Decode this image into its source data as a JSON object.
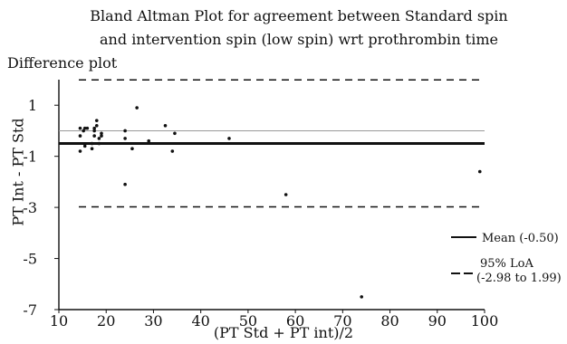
{
  "chart_data": {
    "type": "scatter",
    "title_line1": "Bland Altman Plot for agreement between Standard spin",
    "title_line2": "and intervention spin (low spin) wrt prothrombin time",
    "subtitle": "Difference plot",
    "xlabel": "(PT Std + PT int)/2",
    "ylabel": "PT Int - PT Std",
    "xlim": [
      10,
      100
    ],
    "ylim": [
      -7,
      2
    ],
    "xticks": [
      10,
      20,
      30,
      40,
      50,
      60,
      70,
      80,
      90,
      100
    ],
    "yticks": [
      1,
      -1,
      -3,
      -5,
      -7
    ],
    "grid": false,
    "zero_line": 0,
    "mean": -0.5,
    "loa_upper": 1.99,
    "loa_lower": -2.98,
    "points": [
      {
        "x": 14.5,
        "y": -0.2
      },
      {
        "x": 14.5,
        "y": 0.1
      },
      {
        "x": 14.5,
        "y": -0.8
      },
      {
        "x": 15.2,
        "y": 0.0
      },
      {
        "x": 15.5,
        "y": 0.1
      },
      {
        "x": 15.5,
        "y": -0.6
      },
      {
        "x": 16.0,
        "y": 0.1
      },
      {
        "x": 17.0,
        "y": -0.5
      },
      {
        "x": 17.0,
        "y": -0.7
      },
      {
        "x": 17.5,
        "y": 0.1
      },
      {
        "x": 17.5,
        "y": 0.0
      },
      {
        "x": 17.5,
        "y": -0.2
      },
      {
        "x": 18.0,
        "y": 0.2
      },
      {
        "x": 18.0,
        "y": 0.4
      },
      {
        "x": 18.5,
        "y": -0.3
      },
      {
        "x": 18.5,
        "y": -0.5
      },
      {
        "x": 19.0,
        "y": -0.1
      },
      {
        "x": 19.0,
        "y": -0.2
      },
      {
        "x": 24.0,
        "y": 0.0
      },
      {
        "x": 24.0,
        "y": -0.3
      },
      {
        "x": 24.0,
        "y": -2.1
      },
      {
        "x": 25.5,
        "y": -0.7
      },
      {
        "x": 26.5,
        "y": 0.9
      },
      {
        "x": 29.0,
        "y": -0.4
      },
      {
        "x": 32.5,
        "y": 0.2
      },
      {
        "x": 34.0,
        "y": -0.8
      },
      {
        "x": 34.5,
        "y": -0.1
      },
      {
        "x": 46.0,
        "y": -0.3
      },
      {
        "x": 58.0,
        "y": -2.5
      },
      {
        "x": 74.0,
        "y": -6.5
      },
      {
        "x": 99.0,
        "y": -1.6
      }
    ],
    "legend": {
      "placement": "right",
      "mean_label": "Mean (-0.50)",
      "loa_label_line1": "95% LoA",
      "loa_label_line2": "(-2.98 to 1.99)"
    }
  }
}
